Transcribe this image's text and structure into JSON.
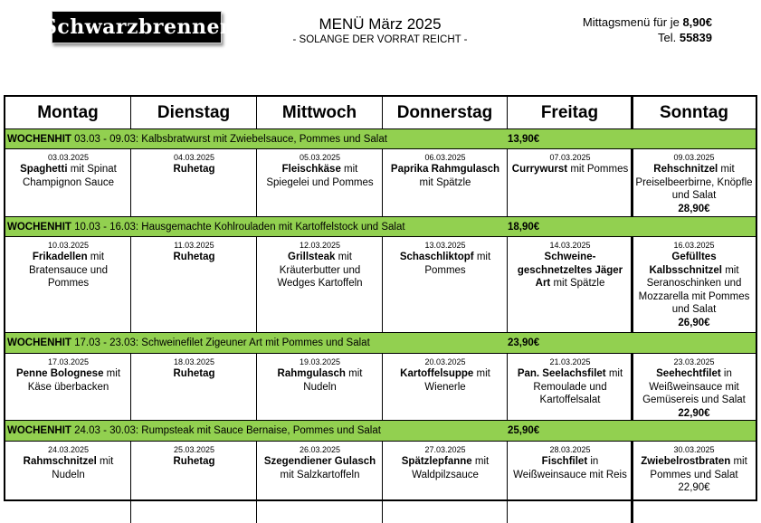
{
  "header": {
    "logo_text": "Schwarzbrenner",
    "title": "MENÜ März 2025",
    "subtitle": "- SOLANGE DER VORRAT REICHT -",
    "lunch_label": "Mittagsmenü für je ",
    "lunch_price": "8,90€",
    "tel_label": "Tel. ",
    "tel_number": "55839"
  },
  "colors": {
    "highlight": "#92d050"
  },
  "days": [
    "Montag",
    "Dienstag",
    "Mittwoch",
    "Donnerstag",
    "Freitag",
    "Sonntag"
  ],
  "weeks": [
    {
      "hit": {
        "label": "WOCHENHIT",
        "text": " 03.03 - 09.03: Kalbsbratwurst mit Zwiebelsauce, Pommes und Salat",
        "price": "13,90€"
      },
      "days": [
        {
          "date": "03.03.2025",
          "bold": "Spaghetti",
          "rest": " mit Spinat Champignon Sauce"
        },
        {
          "date": "04.03.2025",
          "bold": "Ruhetag",
          "rest": ""
        },
        {
          "date": "05.03.2025",
          "bold": "Fleischkäse",
          "rest": " mit Spiegelei und Pommes"
        },
        {
          "date": "06.03.2025",
          "bold": "Paprika Rahmgulasch",
          "rest": " mit Spätzle"
        },
        {
          "date": "07.03.2025",
          "bold": "Currywurst",
          "rest": " mit Pommes"
        },
        {
          "date": "09.03.2025",
          "bold": "Rehschnitzel",
          "rest": " mit Preiselbeerbirne, Knöpfle und Salat",
          "price": "28,90€",
          "price_bold": true
        }
      ]
    },
    {
      "hit": {
        "label": "WOCHENHIT",
        "text": " 10.03 - 16.03: Hausgemachte Kohlrouladen mit Kartoffelstock und Salat",
        "price": "18,90€"
      },
      "days": [
        {
          "date": "10.03.2025",
          "bold": "Frikadellen",
          "rest": " mit Bratensauce und Pommes"
        },
        {
          "date": "11.03.2025",
          "bold": "Ruhetag",
          "rest": ""
        },
        {
          "date": "12.03.2025",
          "bold": "Grillsteak",
          "rest": " mit Kräuterbutter und Wedges Kartoffeln"
        },
        {
          "date": "13.03.2025",
          "bold": "Schaschliktopf",
          "rest": " mit Pommes"
        },
        {
          "date": "14.03.2025",
          "bold": "Schweine-geschnetzeltes Jäger Art",
          "rest": " mit Spätzle"
        },
        {
          "date": "16.03.2025",
          "bold": "Gefülltes Kalbsschnitzel",
          "rest": " mit Seranoschinken und Mozzarella mit Pommes und Salat",
          "price": "26,90€",
          "price_bold": true
        }
      ]
    },
    {
      "hit": {
        "label": "WOCHENHIT",
        "text": " 17.03 - 23.03: Schweinefilet Zigeuner Art mit Pommes und Salat",
        "price": "23,90€"
      },
      "days": [
        {
          "date": "17.03.2025",
          "bold": "Penne Bolognese",
          "rest": " mit Käse überbacken"
        },
        {
          "date": "18.03.2025",
          "bold": "Ruhetag",
          "rest": ""
        },
        {
          "date": "19.03.2025",
          "bold": "Rahmgulasch",
          "rest": " mit Nudeln"
        },
        {
          "date": "20.03.2025",
          "bold": "Kartoffelsuppe",
          "rest": " mit Wienerle"
        },
        {
          "date": "21.03.2025",
          "bold": "Pan. Seelachsfilet",
          "rest": " mit Remoulade und Kartoffelsalat"
        },
        {
          "date": "23.03.2025",
          "bold": "Seehechtfilet",
          "rest": " in Weißweinsauce mit Gemüsereis und Salat",
          "price": "22,90€",
          "price_bold": true
        }
      ]
    },
    {
      "hit": {
        "label": "WOCHENHIT",
        "text": " 24.03 - 30.03: Rumpsteak mit Sauce Bernaise, Pommes und Salat",
        "price": "25,90€"
      },
      "days": [
        {
          "date": "24.03.2025",
          "bold": "Rahmschnitzel",
          "rest": " mit Nudeln"
        },
        {
          "date": "25.03.2025",
          "bold": "Ruhetag",
          "rest": ""
        },
        {
          "date": "26.03.2025",
          "bold": "Szegendiener Gulasch",
          "rest": " mit Salzkartoffeln"
        },
        {
          "date": "27.03.2025",
          "bold": "Spätzlepfanne",
          "rest": " mit Waldpilzsauce"
        },
        {
          "date": "28.03.2025",
          "bold": "Fischfilet",
          "rest": " in Weißweinsauce mit Reis"
        },
        {
          "date": "30.03.2025",
          "bold": "Zwiebelrostbraten",
          "rest": " mit Pommes und Salat",
          "price": "22,90€",
          "price_bold": false
        }
      ]
    }
  ]
}
